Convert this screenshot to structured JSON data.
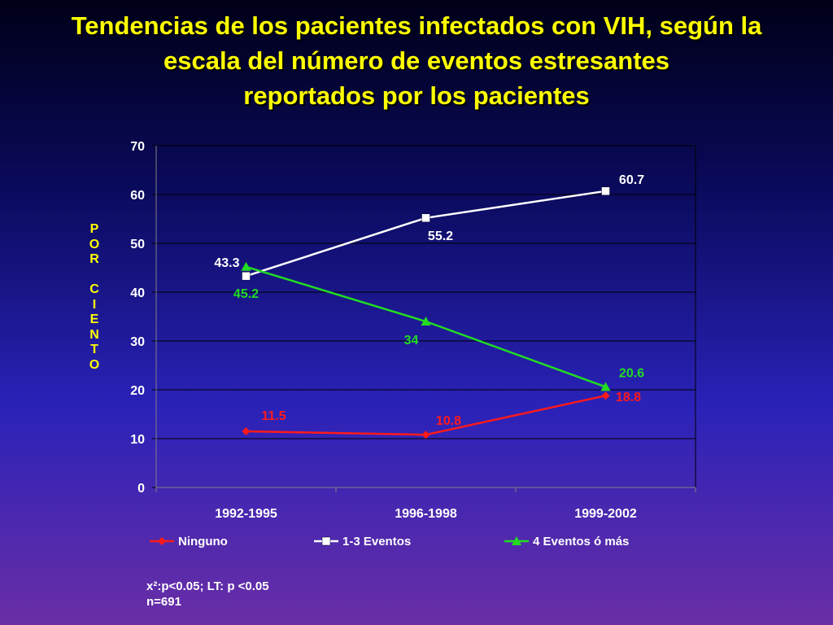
{
  "title_lines": [
    "Tendencias de los pacientes infectados con VIH, según la",
    "escala del número de eventos estresantes",
    "reportados por los pacientes"
  ],
  "footnote": {
    "line1": "x²:p<0.05;  LT: p <0.05",
    "line2": "n=691"
  },
  "colors": {
    "title": "#ffff00",
    "ninguno": "#ff1a1a",
    "eventos_1_3": "#ffffff",
    "eventos_4": "#22dd22"
  },
  "chart_data": {
    "type": "line",
    "title": "",
    "xlabel": "",
    "ylabel": "POR CIENTO",
    "categories": [
      "1992-1995",
      "1996-1998",
      "1999-2002"
    ],
    "ylim": [
      0,
      70
    ],
    "yticks": [
      0,
      10,
      20,
      30,
      40,
      50,
      60,
      70
    ],
    "grid": true,
    "legend_position": "bottom",
    "series": [
      {
        "name": "Ninguno",
        "values": [
          11.5,
          10.8,
          18.8
        ],
        "marker": "diamond",
        "color": "#ff1a1a"
      },
      {
        "name": "1-3 Eventos",
        "values": [
          43.3,
          55.2,
          60.7
        ],
        "marker": "square",
        "color": "#ffffff"
      },
      {
        "name": "4 Eventos ó más",
        "values": [
          45.2,
          34,
          20.6
        ],
        "marker": "triangle",
        "color": "#22dd22"
      }
    ],
    "data_labels": [
      [
        "11.5",
        "10.8",
        "18.8"
      ],
      [
        "43.3",
        "55.2",
        "60.7"
      ],
      [
        "45.2",
        "34",
        "20.6"
      ]
    ]
  }
}
